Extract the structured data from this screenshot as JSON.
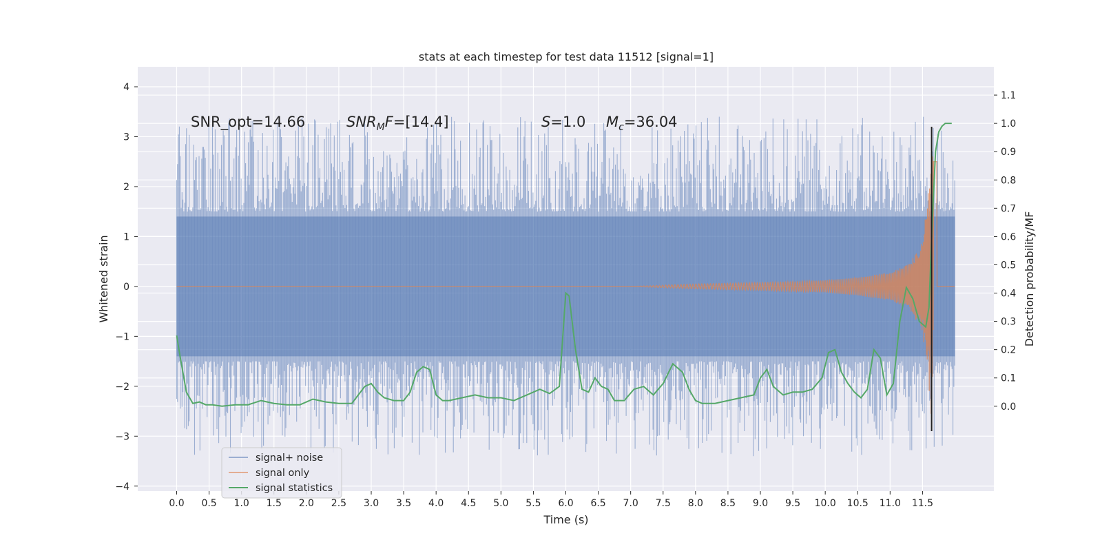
{
  "chart_data": {
    "type": "line",
    "title": "stats at each timestep for test data 11512 [signal=1]",
    "xlabel": "Time (s)",
    "ylabel": "Whitened strain",
    "y2label": "Detection probability/MF",
    "xlim": [
      -0.6,
      12.6
    ],
    "ylim": [
      -4.1,
      4.4
    ],
    "y2lim": [
      -0.3,
      1.2
    ],
    "xticks": [
      "0.0",
      "0.5",
      "1.0",
      "1.5",
      "2.0",
      "2.5",
      "3.0",
      "3.5",
      "4.0",
      "4.5",
      "5.0",
      "5.5",
      "6.0",
      "6.5",
      "7.0",
      "7.5",
      "8.0",
      "8.5",
      "9.0",
      "9.5",
      "10.0",
      "10.5",
      "11.0",
      "11.5"
    ],
    "yticks": [
      "4",
      "3",
      "2",
      "1",
      "0",
      "−1",
      "−2",
      "−3",
      "−4"
    ],
    "y2ticks": [
      "1.1",
      "1.0",
      "0.9",
      "0.8",
      "0.7",
      "0.6",
      "0.5",
      "0.4",
      "0.3",
      "0.2",
      "0.1",
      "0.0"
    ],
    "grid": true,
    "legend_position": "lower-left",
    "colors": {
      "background": "#eaeaf2",
      "grid": "#ffffff",
      "noise": "#4c72b0",
      "signal": "#dd8452",
      "stats": "#55a868",
      "marker": "#222222"
    },
    "annotations": {
      "snr_opt": "SNR_opt=14.66",
      "snr_mf_sym": "SNR",
      "snr_mf_sub": "M",
      "snr_mf_sym2": "F",
      "snr_mf_val": "=[14.4]",
      "s_sym": "S",
      "s_val": "=1.0",
      "mc_sym": "M",
      "mc_sub": "c",
      "mc_val": "=36.04"
    },
    "series": [
      {
        "name": "signal+ noise",
        "axis": "left",
        "t_range": [
          0.0,
          12.0
        ],
        "typical_amplitude": 1.4,
        "peak_max": 4.1,
        "peak_min": -3.7
      },
      {
        "name": "signal only",
        "axis": "left",
        "description_points": [
          [
            0.0,
            0
          ],
          [
            7.0,
            0
          ],
          [
            8.0,
            0.05
          ],
          [
            9.0,
            0.08
          ],
          [
            10.0,
            0.12
          ],
          [
            10.5,
            0.18
          ],
          [
            11.0,
            0.28
          ],
          [
            11.3,
            0.45
          ],
          [
            11.5,
            0.9
          ],
          [
            11.6,
            2.0
          ],
          [
            11.65,
            3.4
          ],
          [
            11.7,
            -3.0
          ],
          [
            11.75,
            0
          ],
          [
            12.0,
            0
          ]
        ]
      },
      {
        "name": "signal statistics",
        "axis": "right",
        "x": [
          0.0,
          0.05,
          0.15,
          0.25,
          0.35,
          0.45,
          0.55,
          0.7,
          0.9,
          1.1,
          1.3,
          1.5,
          1.7,
          1.9,
          2.1,
          2.3,
          2.5,
          2.7,
          2.9,
          3.0,
          3.1,
          3.2,
          3.35,
          3.5,
          3.6,
          3.7,
          3.8,
          3.9,
          4.0,
          4.1,
          4.2,
          4.4,
          4.6,
          4.8,
          5.0,
          5.2,
          5.4,
          5.6,
          5.75,
          5.9,
          6.0,
          6.05,
          6.15,
          6.25,
          6.35,
          6.45,
          6.55,
          6.65,
          6.75,
          6.9,
          7.05,
          7.2,
          7.35,
          7.5,
          7.65,
          7.8,
          7.9,
          8.0,
          8.1,
          8.3,
          8.5,
          8.7,
          8.9,
          9.0,
          9.1,
          9.2,
          9.35,
          9.5,
          9.65,
          9.8,
          9.95,
          10.05,
          10.15,
          10.25,
          10.35,
          10.45,
          10.55,
          10.65,
          10.75,
          10.85,
          10.95,
          11.05,
          11.15,
          11.25,
          11.35,
          11.45,
          11.55,
          11.6,
          11.65,
          11.7,
          11.75,
          11.8,
          11.85,
          11.9,
          11.95
        ],
        "y": [
          0.25,
          0.18,
          0.05,
          0.01,
          0.015,
          0.005,
          0.005,
          0.0,
          0.005,
          0.005,
          0.02,
          0.01,
          0.005,
          0.005,
          0.025,
          0.015,
          0.01,
          0.01,
          0.07,
          0.08,
          0.05,
          0.03,
          0.02,
          0.02,
          0.05,
          0.12,
          0.14,
          0.13,
          0.04,
          0.02,
          0.02,
          0.03,
          0.04,
          0.03,
          0.03,
          0.02,
          0.04,
          0.06,
          0.045,
          0.07,
          0.4,
          0.39,
          0.2,
          0.06,
          0.05,
          0.1,
          0.07,
          0.06,
          0.02,
          0.02,
          0.06,
          0.07,
          0.04,
          0.08,
          0.15,
          0.12,
          0.06,
          0.02,
          0.01,
          0.01,
          0.02,
          0.03,
          0.04,
          0.1,
          0.13,
          0.07,
          0.04,
          0.05,
          0.05,
          0.06,
          0.1,
          0.19,
          0.2,
          0.12,
          0.08,
          0.05,
          0.03,
          0.06,
          0.2,
          0.17,
          0.04,
          0.08,
          0.3,
          0.42,
          0.38,
          0.3,
          0.28,
          0.35,
          0.65,
          0.9,
          0.97,
          0.99,
          1.0,
          1.0,
          1.0
        ]
      }
    ]
  }
}
